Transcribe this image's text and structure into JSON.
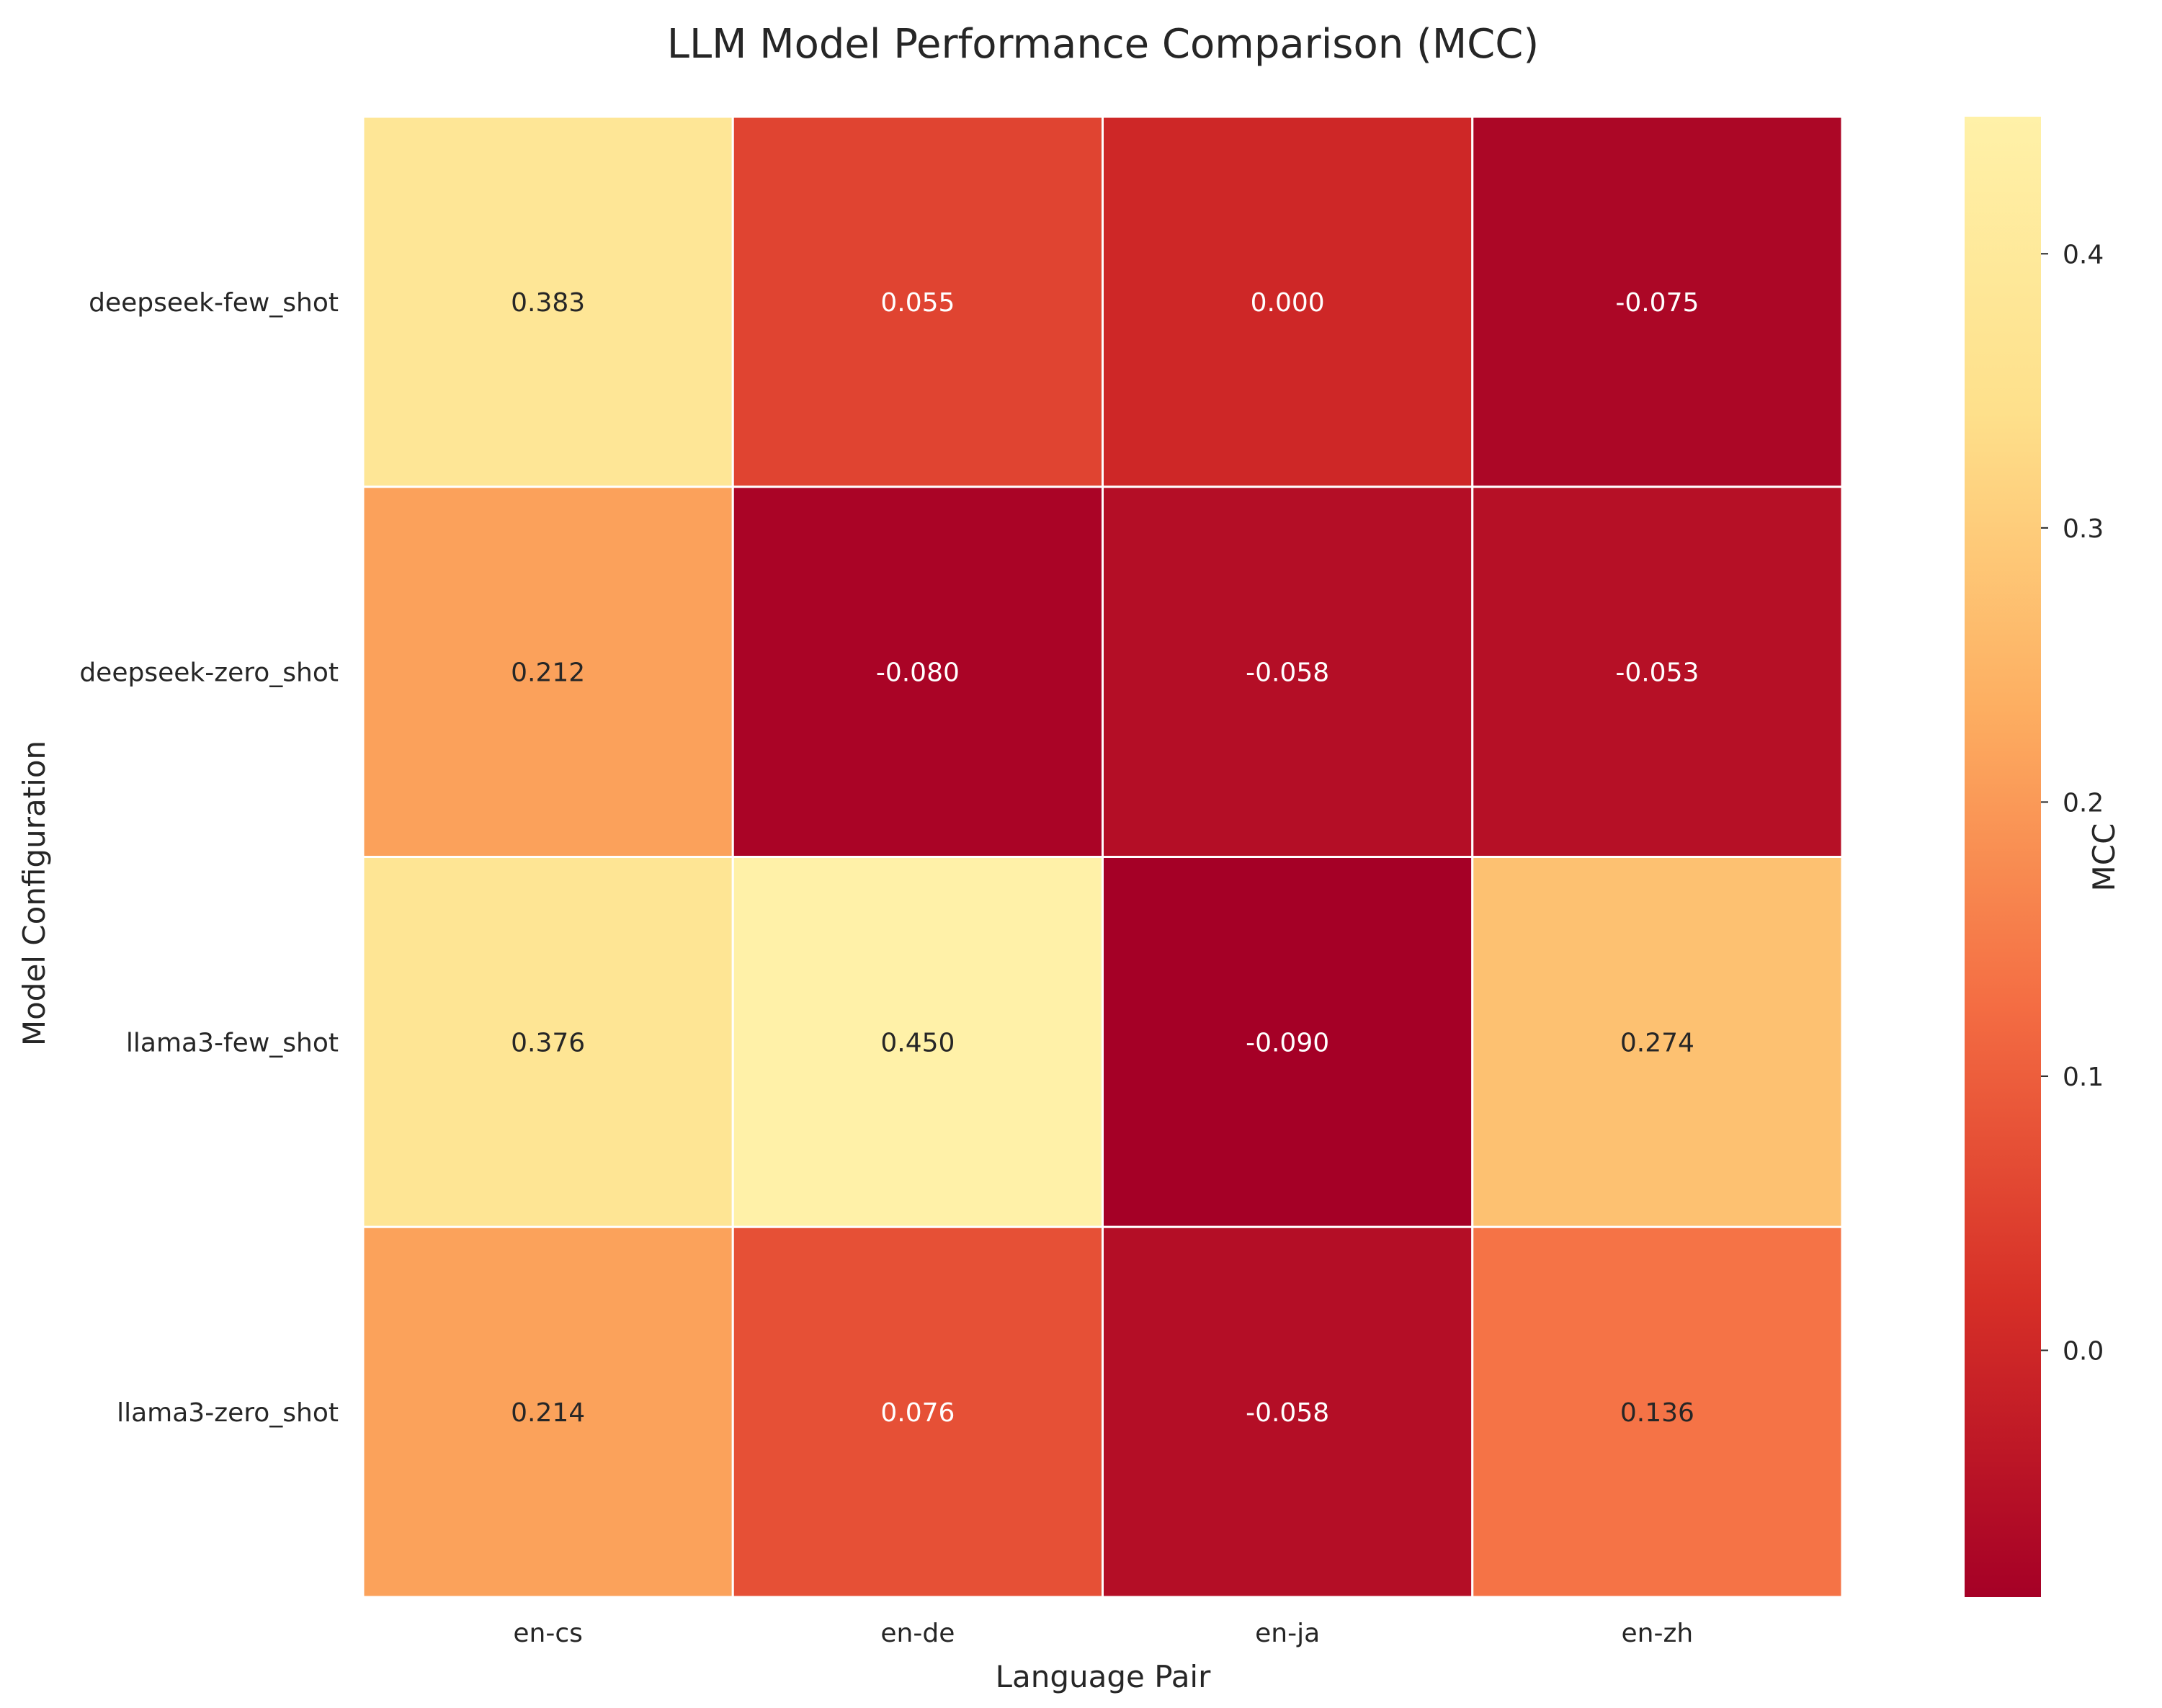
{
  "chart_data": {
    "type": "heatmap",
    "title": "LLM Model Performance Comparison (MCC)",
    "xlabel": "Language Pair",
    "ylabel": "Model Configuration",
    "x_categories": [
      "en-cs",
      "en-de",
      "en-ja",
      "en-zh"
    ],
    "y_categories": [
      "deepseek-few_shot",
      "deepseek-zero_shot",
      "llama3-few_shot",
      "llama3-zero_shot"
    ],
    "values": [
      [
        0.383,
        0.055,
        0.0,
        -0.075
      ],
      [
        0.212,
        -0.08,
        -0.058,
        -0.053
      ],
      [
        0.376,
        0.45,
        -0.09,
        0.274
      ],
      [
        0.214,
        0.076,
        -0.058,
        0.136
      ]
    ],
    "value_labels": [
      [
        "0.383",
        "0.055",
        "0.000",
        "-0.075"
      ],
      [
        "0.212",
        "-0.080",
        "-0.058",
        "-0.053"
      ],
      [
        "0.376",
        "0.450",
        "-0.090",
        "0.274"
      ],
      [
        "0.214",
        "0.076",
        "-0.058",
        "0.136"
      ]
    ],
    "colorbar": {
      "label": "MCC",
      "range": [
        -0.09,
        0.45
      ],
      "ticks": [
        0.0,
        0.1,
        0.2,
        0.3,
        0.4
      ],
      "tick_labels": [
        "0.0",
        "0.1",
        "0.2",
        "0.3",
        "0.4"
      ],
      "colormap": "YlOrRd (reversed)",
      "stops": [
        "#a50026",
        "#d62f27",
        "#f46d43",
        "#fdae61",
        "#fee08b",
        "#fff1a8"
      ]
    },
    "grid": false,
    "legend": "colorbar-right"
  }
}
